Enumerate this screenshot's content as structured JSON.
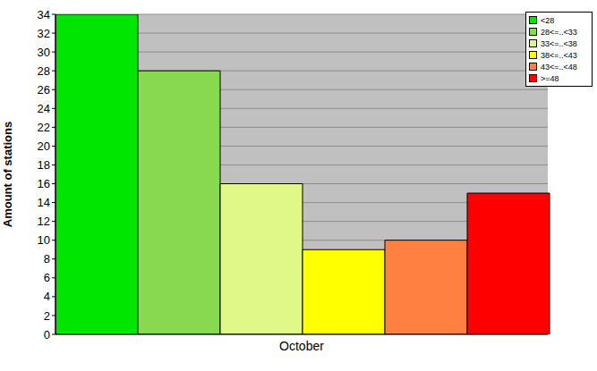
{
  "chart_data": {
    "type": "bar",
    "categories": [
      "October"
    ],
    "y_label": "Amount of stations",
    "series": [
      {
        "name": "<28",
        "color": "#00e600",
        "values": [
          34
        ]
      },
      {
        "name": "28<=..<33",
        "color": "#88d850",
        "values": [
          28
        ]
      },
      {
        "name": "33<=..<38",
        "color": "#e0f888",
        "values": [
          16
        ]
      },
      {
        "name": "38<=..<43",
        "color": "#ffff00",
        "values": [
          9
        ]
      },
      {
        "name": "43<=..<48",
        "color": "#ff8040",
        "values": [
          10
        ]
      },
      {
        "name": ">=48",
        "color": "#ff0000",
        "values": [
          15
        ]
      }
    ],
    "ylim": [
      0,
      34
    ],
    "yticks": [
      0,
      2,
      4,
      6,
      8,
      10,
      12,
      14,
      16,
      18,
      20,
      22,
      24,
      26,
      28,
      30,
      32,
      34
    ],
    "grid": true,
    "legend": "upper right"
  }
}
